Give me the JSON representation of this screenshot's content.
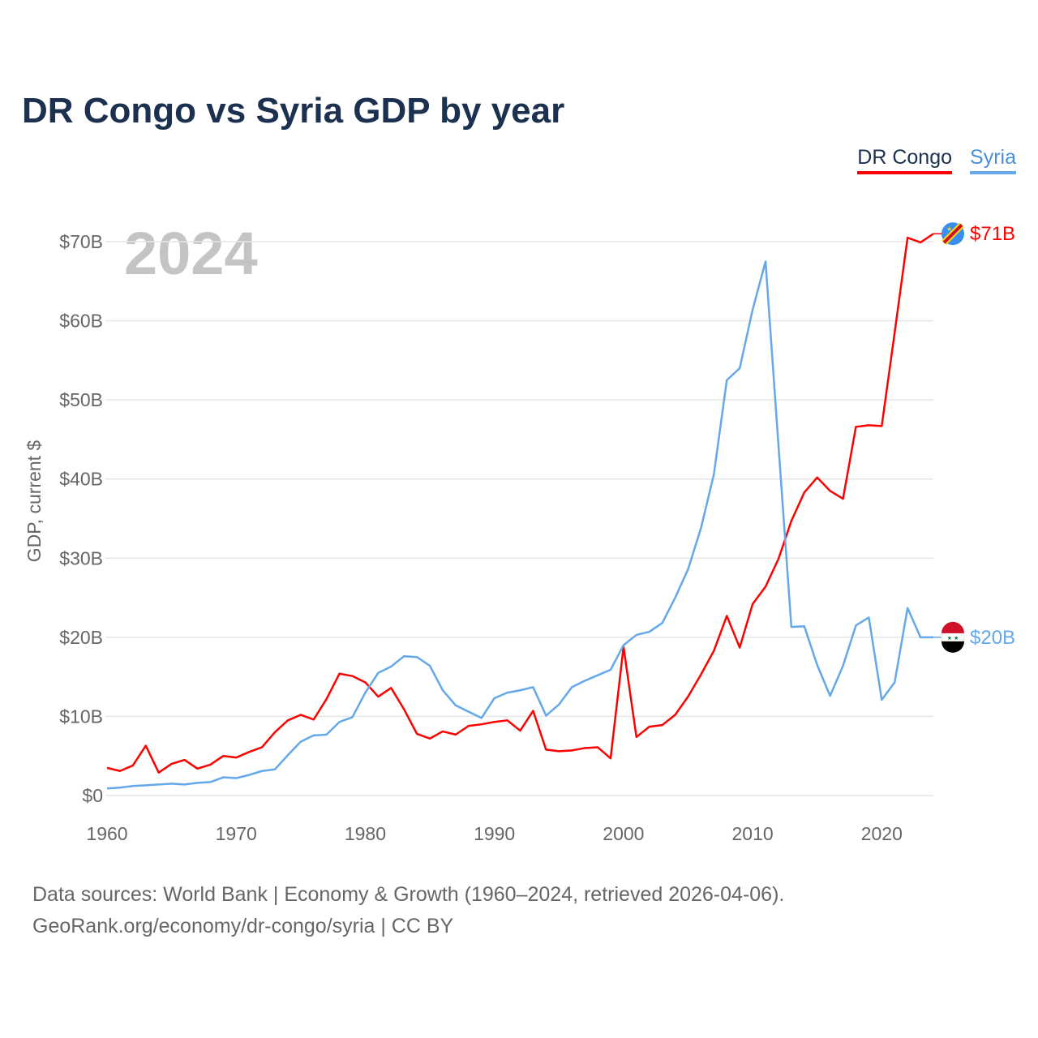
{
  "chart_data": {
    "type": "line",
    "title": "DR Congo vs Syria GDP by year",
    "ylabel": "GDP, current $",
    "xlabel": "",
    "year_watermark": "2024",
    "ylim": [
      0,
      70
    ],
    "xlim": [
      1960,
      2024
    ],
    "y_ticks": [
      0,
      10,
      20,
      30,
      40,
      50,
      60,
      70
    ],
    "y_tick_labels": [
      "$0",
      "$10B",
      "$20B",
      "$30B",
      "$40B",
      "$50B",
      "$60B",
      "$70B"
    ],
    "x_ticks": [
      1960,
      1970,
      1980,
      1990,
      2000,
      2010,
      2020
    ],
    "x_tick_labels": [
      "1960",
      "1970",
      "1980",
      "1990",
      "2000",
      "2010",
      "2020"
    ],
    "grid": true,
    "legend_position": "top-right",
    "x": [
      1960,
      1961,
      1962,
      1963,
      1964,
      1965,
      1966,
      1967,
      1968,
      1969,
      1970,
      1971,
      1972,
      1973,
      1974,
      1975,
      1976,
      1977,
      1978,
      1979,
      1980,
      1981,
      1982,
      1983,
      1984,
      1985,
      1986,
      1987,
      1988,
      1989,
      1990,
      1991,
      1992,
      1993,
      1994,
      1995,
      1996,
      1997,
      1998,
      1999,
      2000,
      2001,
      2002,
      2003,
      2004,
      2005,
      2006,
      2007,
      2008,
      2009,
      2010,
      2011,
      2012,
      2013,
      2014,
      2015,
      2016,
      2017,
      2018,
      2019,
      2020,
      2021,
      2022,
      2023,
      2024
    ],
    "series": [
      {
        "name": "DR Congo",
        "color": "#ff0000",
        "end_label": "$71B",
        "values": [
          3.5,
          3.1,
          3.8,
          6.3,
          2.9,
          4.0,
          4.5,
          3.4,
          3.9,
          5.0,
          4.8,
          5.5,
          6.1,
          8.0,
          9.5,
          10.2,
          9.6,
          12.2,
          15.4,
          15.1,
          14.3,
          12.5,
          13.6,
          10.9,
          7.8,
          7.2,
          8.1,
          7.7,
          8.8,
          9.0,
          9.3,
          9.5,
          8.2,
          10.7,
          5.8,
          5.6,
          5.7,
          6.0,
          6.1,
          4.7,
          18.8,
          7.4,
          8.7,
          8.9,
          10.2,
          12.5,
          15.3,
          18.3,
          22.7,
          18.7,
          24.2,
          26.4,
          29.9,
          34.7,
          38.3,
          40.2,
          38.5,
          37.5,
          46.6,
          46.8,
          46.7,
          58.5,
          70.5,
          69.9,
          71.0
        ]
      },
      {
        "name": "Syria",
        "color": "#64a8ea",
        "end_label": "$20B",
        "values": [
          0.9,
          1.0,
          1.2,
          1.3,
          1.4,
          1.5,
          1.4,
          1.6,
          1.7,
          2.3,
          2.2,
          2.6,
          3.1,
          3.3,
          5.1,
          6.8,
          7.6,
          7.7,
          9.3,
          9.9,
          13.0,
          15.5,
          16.3,
          17.6,
          17.5,
          16.4,
          13.3,
          11.4,
          10.6,
          9.8,
          12.3,
          13.0,
          13.3,
          13.7,
          10.1,
          11.5,
          13.7,
          14.5,
          15.2,
          15.9,
          19.0,
          20.3,
          20.7,
          21.8,
          25.0,
          28.6,
          33.8,
          40.6,
          52.5,
          54.0,
          61.4,
          67.5,
          44.3,
          21.3,
          21.4,
          16.5,
          12.6,
          16.4,
          21.5,
          22.5,
          12.1,
          14.3,
          23.7,
          20.0,
          20.0
        ]
      }
    ]
  },
  "legend": {
    "drc": "DR Congo",
    "syria": "Syria"
  },
  "source": {
    "line1": "Data sources: World Bank | Economy & Growth (1960–2024, retrieved 2026-04-06).",
    "line2": "GeoRank.org/economy/dr-congo/syria | CC BY"
  }
}
